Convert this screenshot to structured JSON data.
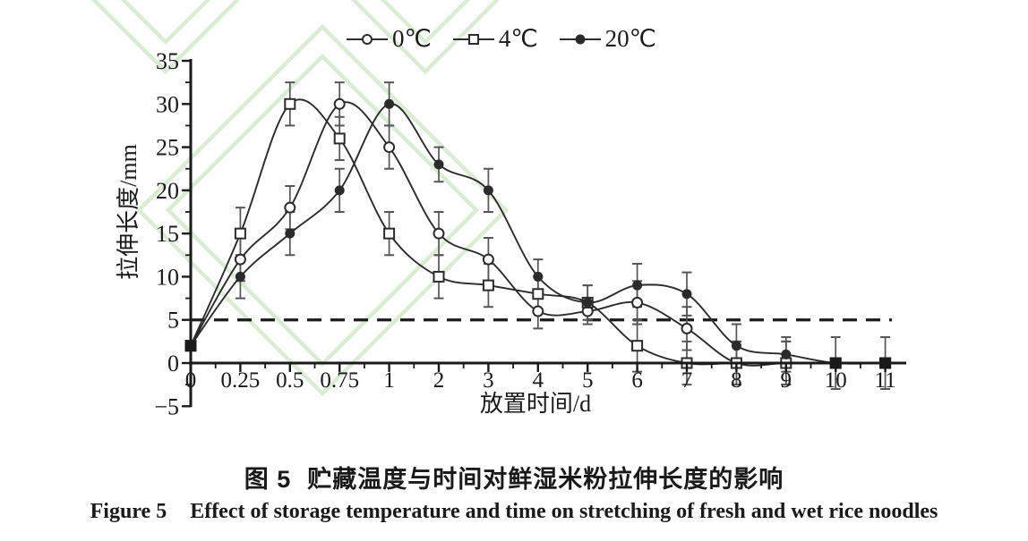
{
  "figure": {
    "caption_cn": {
      "label": "图 5",
      "text": "贮藏温度与时间对鲜湿米粉拉伸长度的影响"
    },
    "caption_en": {
      "label": "Figure 5",
      "text": "Effect of storage temperature and time on stretching of fresh and wet rice noodles"
    }
  },
  "chart_data": {
    "type": "line",
    "title": "",
    "xlabel": "放置时间/d",
    "ylabel": "拉伸长度/mm",
    "x_categories": [
      "0",
      "0.25",
      "0.5",
      "0.75",
      "1",
      "2",
      "3",
      "4",
      "5",
      "6",
      "7",
      "8",
      "9",
      "10",
      "11"
    ],
    "x_axis_type": "category-equal-spacing",
    "ylim": [
      -5,
      35
    ],
    "y_ticks": [
      35,
      30,
      25,
      20,
      15,
      10,
      5,
      0,
      -5
    ],
    "y_minor_tick_step": 2.5,
    "grid": "off",
    "reference_line": {
      "y": 5,
      "style": "dashed"
    },
    "legend_position": "top-center",
    "colors": {
      "line": "#2b2b2b",
      "axis": "#1a1a1a",
      "error_bar": "#555555",
      "watermark": "#d9edd3"
    },
    "series": [
      {
        "name": "0℃",
        "marker": "open-circle",
        "values": [
          2,
          12,
          18,
          30,
          25,
          15,
          12,
          6,
          6,
          7,
          4,
          0,
          0,
          0,
          0
        ],
        "error": [
          0,
          2.5,
          2.5,
          2.5,
          2.5,
          2.5,
          2.5,
          2,
          1.5,
          2.5,
          2.5,
          2.5,
          2.5,
          0,
          0
        ]
      },
      {
        "name": "4℃",
        "marker": "open-square",
        "values": [
          2,
          15,
          30,
          26,
          15,
          10,
          9,
          8,
          7,
          2,
          0,
          0,
          0,
          0,
          0
        ],
        "error": [
          0,
          3,
          2.5,
          2.5,
          2.5,
          2.5,
          2.5,
          2,
          2,
          3,
          2.5,
          2.5,
          2.5,
          0,
          0
        ]
      },
      {
        "name": "20℃",
        "marker": "filled-circle",
        "values": [
          2,
          10,
          15,
          20,
          30,
          23,
          20,
          10,
          7,
          9,
          8,
          2,
          1,
          0,
          0
        ],
        "error": [
          0,
          2.5,
          2.5,
          2.5,
          2.5,
          2,
          2.5,
          2,
          2,
          2.5,
          2.5,
          2.5,
          2,
          3,
          3
        ]
      }
    ]
  }
}
